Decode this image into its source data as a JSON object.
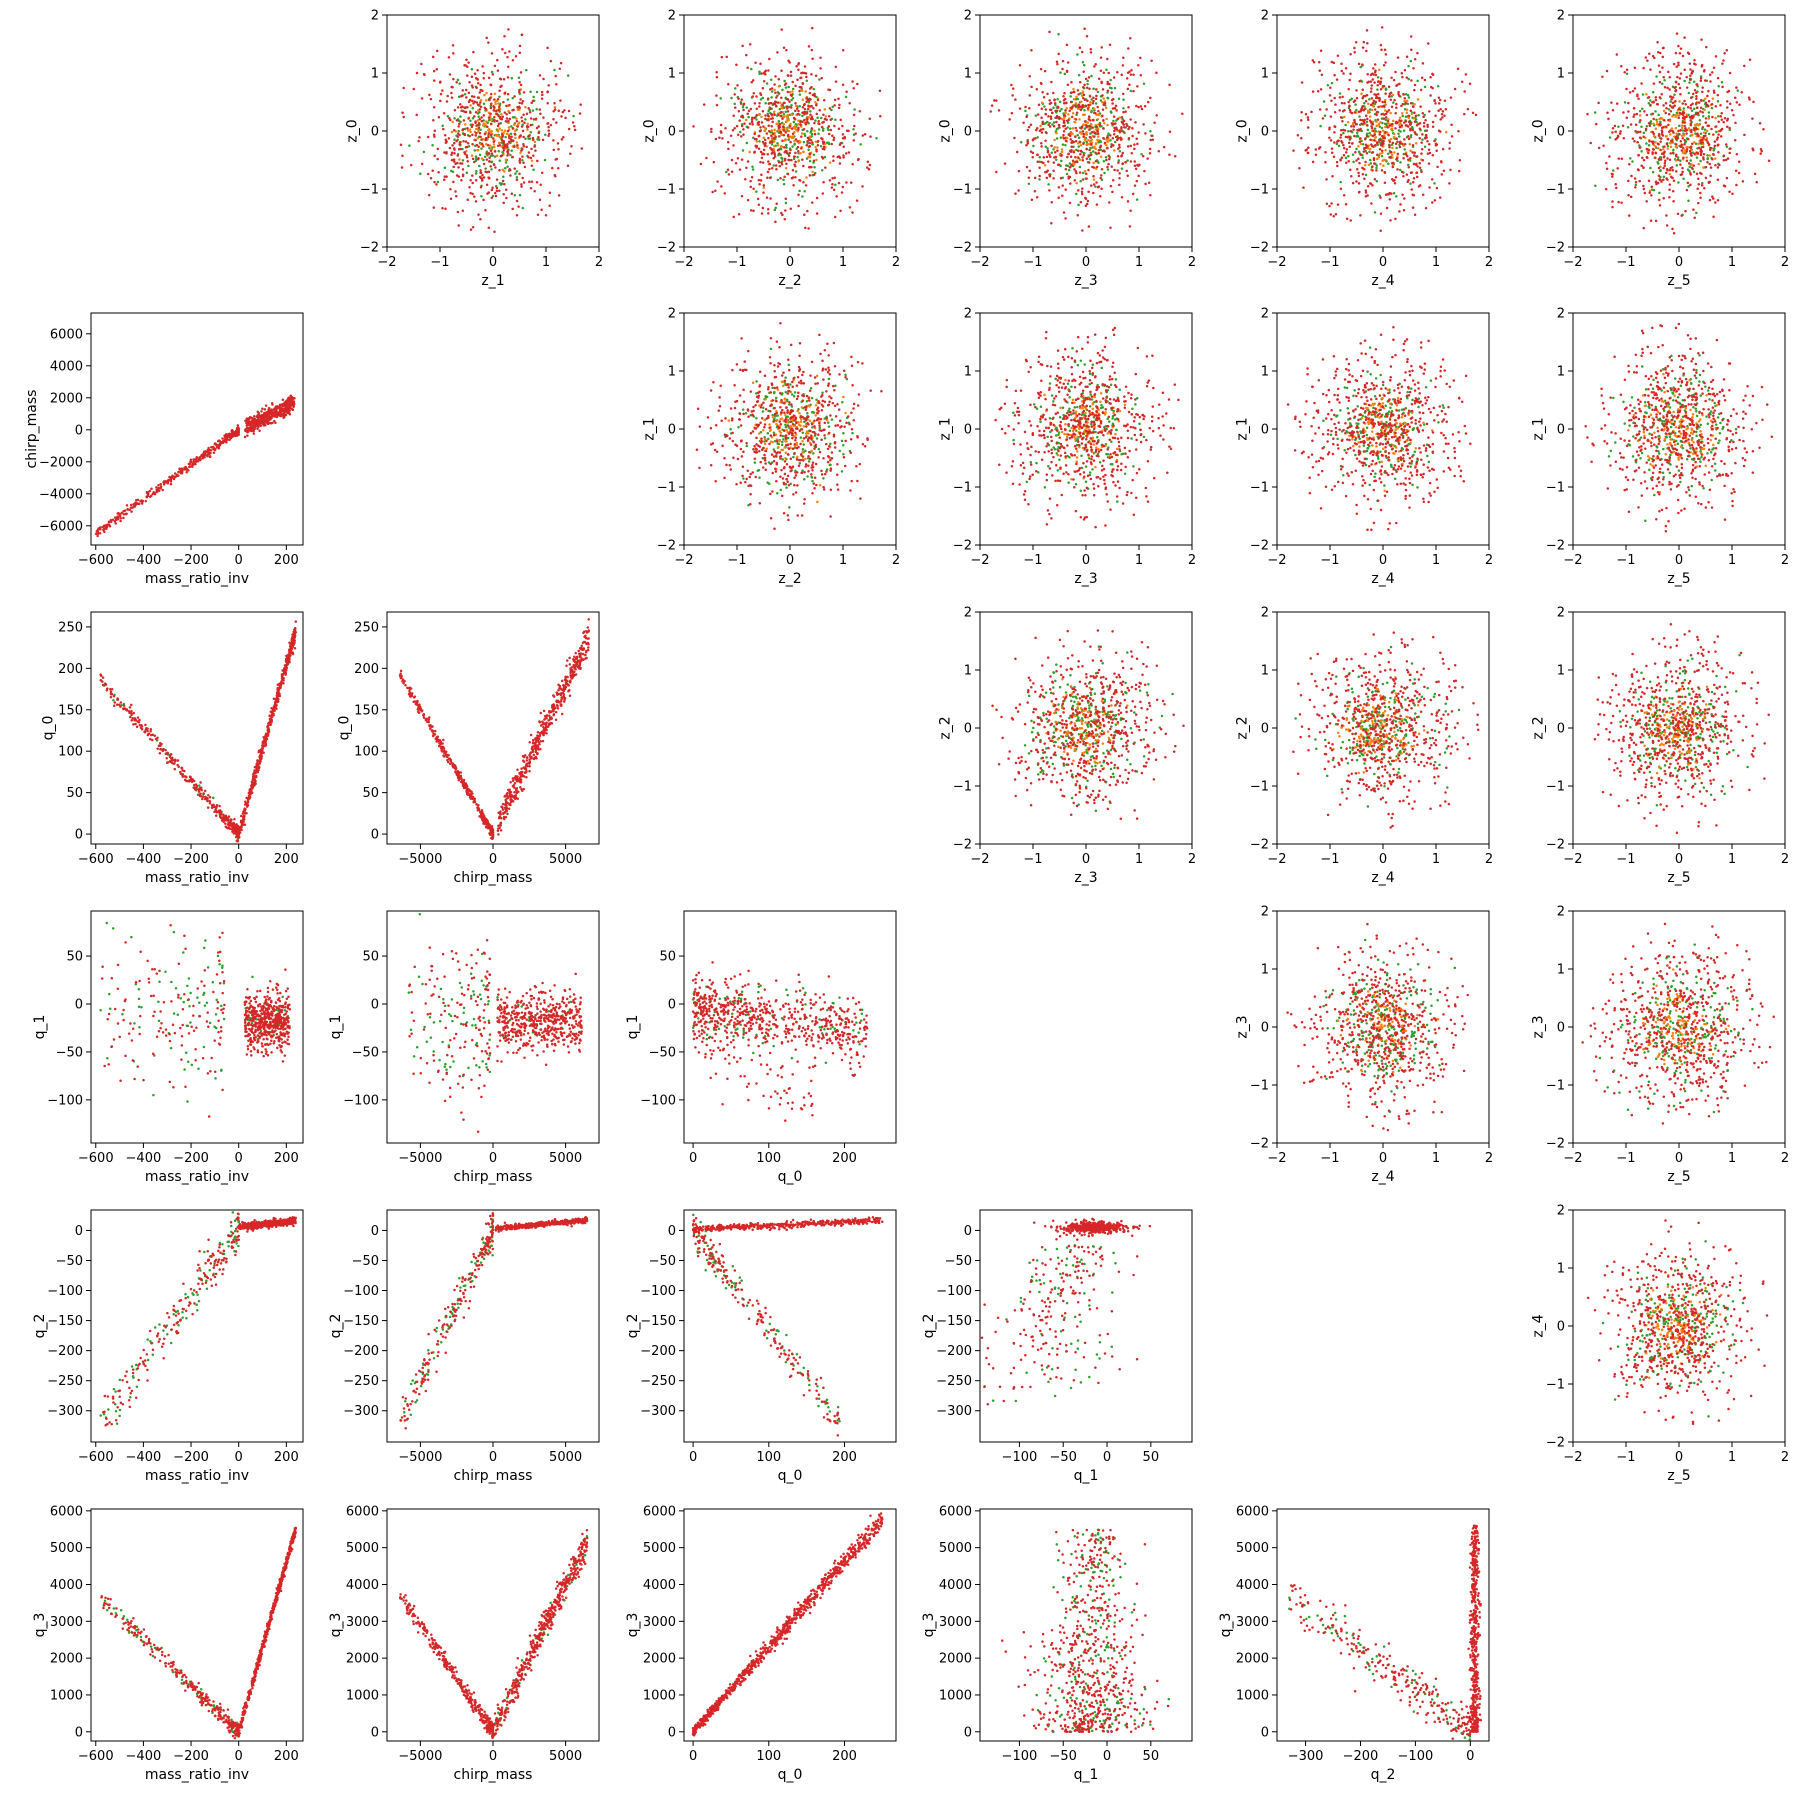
{
  "figure": {
    "background": "#ffffff",
    "point_colors": {
      "red": "#d62728",
      "green": "#2ca02c",
      "orange": "#ff7f0e"
    }
  },
  "chart_data": [
    {
      "type": "scatter",
      "panel": "0-1",
      "xlabel": "z_1",
      "ylabel": "z_0",
      "xticks": [
        -2,
        -1,
        0,
        1,
        2
      ],
      "yticks": [
        -2,
        -1,
        0,
        1,
        2
      ],
      "xlim": [
        -2,
        2
      ],
      "ylim": [
        -2,
        2
      ],
      "shape": "gaussian"
    },
    {
      "type": "scatter",
      "panel": "0-2",
      "xlabel": "z_2",
      "ylabel": "z_0",
      "xticks": [
        -2,
        -1,
        0,
        1,
        2
      ],
      "yticks": [
        -2,
        -1,
        0,
        1,
        2
      ],
      "xlim": [
        -2,
        2
      ],
      "ylim": [
        -2,
        2
      ],
      "shape": "gaussian"
    },
    {
      "type": "scatter",
      "panel": "0-3",
      "xlabel": "z_3",
      "ylabel": "z_0",
      "xticks": [
        -2,
        -1,
        0,
        1,
        2
      ],
      "yticks": [
        -2,
        -1,
        0,
        1,
        2
      ],
      "xlim": [
        -2,
        2
      ],
      "ylim": [
        -2,
        2
      ],
      "shape": "gaussian"
    },
    {
      "type": "scatter",
      "panel": "0-4",
      "xlabel": "z_4",
      "ylabel": "z_0",
      "xticks": [
        -2,
        -1,
        0,
        1,
        2
      ],
      "yticks": [
        -2,
        -1,
        0,
        1,
        2
      ],
      "xlim": [
        -2,
        2
      ],
      "ylim": [
        -2,
        2
      ],
      "shape": "gaussian"
    },
    {
      "type": "scatter",
      "panel": "0-5",
      "xlabel": "z_5",
      "ylabel": "z_0",
      "xticks": [
        -2,
        -1,
        0,
        1,
        2
      ],
      "yticks": [
        -2,
        -1,
        0,
        1,
        2
      ],
      "xlim": [
        -2,
        2
      ],
      "ylim": [
        -2,
        2
      ],
      "shape": "gaussian"
    },
    {
      "type": "scatter",
      "panel": "1-0",
      "xlabel": "mass_ratio_inv",
      "ylabel": "chirp_mass",
      "xticks": [
        -600,
        -400,
        -200,
        0,
        200
      ],
      "yticks": [
        -6000,
        -4000,
        -2000,
        0,
        2000,
        4000,
        6000
      ],
      "xlim": [
        -620,
        270
      ],
      "ylim": [
        -7200,
        7300
      ],
      "shape": "mr_cm"
    },
    {
      "type": "scatter",
      "panel": "1-2",
      "xlabel": "z_2",
      "ylabel": "z_1",
      "xticks": [
        -2,
        -1,
        0,
        1,
        2
      ],
      "yticks": [
        -2,
        -1,
        0,
        1,
        2
      ],
      "xlim": [
        -2,
        2
      ],
      "ylim": [
        -2,
        2
      ],
      "shape": "gaussian"
    },
    {
      "type": "scatter",
      "panel": "1-3",
      "xlabel": "z_3",
      "ylabel": "z_1",
      "xticks": [
        -2,
        -1,
        0,
        1,
        2
      ],
      "yticks": [
        -2,
        -1,
        0,
        1,
        2
      ],
      "xlim": [
        -2,
        2
      ],
      "ylim": [
        -2,
        2
      ],
      "shape": "gaussian"
    },
    {
      "type": "scatter",
      "panel": "1-4",
      "xlabel": "z_4",
      "ylabel": "z_1",
      "xticks": [
        -2,
        -1,
        0,
        1,
        2
      ],
      "yticks": [
        -2,
        -1,
        0,
        1,
        2
      ],
      "xlim": [
        -2,
        2
      ],
      "ylim": [
        -2,
        2
      ],
      "shape": "gaussian"
    },
    {
      "type": "scatter",
      "panel": "1-5",
      "xlabel": "z_5",
      "ylabel": "z_1",
      "xticks": [
        -2,
        -1,
        0,
        1,
        2
      ],
      "yticks": [
        -2,
        -1,
        0,
        1,
        2
      ],
      "xlim": [
        -2,
        2
      ],
      "ylim": [
        -2,
        2
      ],
      "shape": "gaussian"
    },
    {
      "type": "scatter",
      "panel": "2-0",
      "xlabel": "mass_ratio_inv",
      "ylabel": "q_0",
      "xticks": [
        -600,
        -400,
        -200,
        0,
        200
      ],
      "yticks": [
        0,
        50,
        100,
        150,
        200,
        250
      ],
      "xlim": [
        -620,
        270
      ],
      "ylim": [
        -12,
        268
      ],
      "shape": "mr_q0"
    },
    {
      "type": "scatter",
      "panel": "2-1",
      "xlabel": "chirp_mass",
      "ylabel": "q_0",
      "xticks": [
        -5000,
        0,
        5000
      ],
      "yticks": [
        0,
        50,
        100,
        150,
        200,
        250
      ],
      "xlim": [
        -7300,
        7300
      ],
      "ylim": [
        -12,
        268
      ],
      "shape": "cm_q0"
    },
    {
      "type": "scatter",
      "panel": "2-3",
      "xlabel": "z_3",
      "ylabel": "z_2",
      "xticks": [
        -2,
        -1,
        0,
        1,
        2
      ],
      "yticks": [
        -2,
        -1,
        0,
        1,
        2
      ],
      "xlim": [
        -2,
        2
      ],
      "ylim": [
        -2,
        2
      ],
      "shape": "gaussian"
    },
    {
      "type": "scatter",
      "panel": "2-4",
      "xlabel": "z_4",
      "ylabel": "z_2",
      "xticks": [
        -2,
        -1,
        0,
        1,
        2
      ],
      "yticks": [
        -2,
        -1,
        0,
        1,
        2
      ],
      "xlim": [
        -2,
        2
      ],
      "ylim": [
        -2,
        2
      ],
      "shape": "gaussian"
    },
    {
      "type": "scatter",
      "panel": "2-5",
      "xlabel": "z_5",
      "ylabel": "z_2",
      "xticks": [
        -2,
        -1,
        0,
        1,
        2
      ],
      "yticks": [
        -2,
        -1,
        0,
        1,
        2
      ],
      "xlim": [
        -2,
        2
      ],
      "ylim": [
        -2,
        2
      ],
      "shape": "gaussian"
    },
    {
      "type": "scatter",
      "panel": "3-0",
      "xlabel": "mass_ratio_inv",
      "ylabel": "q_1",
      "xticks": [
        -600,
        -400,
        -200,
        0,
        200
      ],
      "yticks": [
        -100,
        -50,
        0,
        50
      ],
      "xlim": [
        -620,
        270
      ],
      "ylim": [
        -145,
        97
      ],
      "shape": "mr_q1"
    },
    {
      "type": "scatter",
      "panel": "3-1",
      "xlabel": "chirp_mass",
      "ylabel": "q_1",
      "xticks": [
        -5000,
        0,
        5000
      ],
      "yticks": [
        -100,
        -50,
        0,
        50
      ],
      "xlim": [
        -7300,
        7300
      ],
      "ylim": [
        -145,
        97
      ],
      "shape": "cm_q1"
    },
    {
      "type": "scatter",
      "panel": "3-2",
      "xlabel": "q_0",
      "ylabel": "q_1",
      "xticks": [
        0,
        100,
        200
      ],
      "yticks": [
        -100,
        -50,
        0,
        50
      ],
      "xlim": [
        -12,
        268
      ],
      "ylim": [
        -145,
        97
      ],
      "shape": "q0_q1"
    },
    {
      "type": "scatter",
      "panel": "3-4",
      "xlabel": "z_4",
      "ylabel": "z_3",
      "xticks": [
        -2,
        -1,
        0,
        1,
        2
      ],
      "yticks": [
        -2,
        -1,
        0,
        1,
        2
      ],
      "xlim": [
        -2,
        2
      ],
      "ylim": [
        -2,
        2
      ],
      "shape": "gaussian"
    },
    {
      "type": "scatter",
      "panel": "3-5",
      "xlabel": "z_5",
      "ylabel": "z_3",
      "xticks": [
        -2,
        -1,
        0,
        1,
        2
      ],
      "yticks": [
        -2,
        -1,
        0,
        1,
        2
      ],
      "xlim": [
        -2,
        2
      ],
      "ylim": [
        -2,
        2
      ],
      "shape": "gaussian"
    },
    {
      "type": "scatter",
      "panel": "4-0",
      "xlabel": "mass_ratio_inv",
      "ylabel": "q_2",
      "xticks": [
        -600,
        -400,
        -200,
        0,
        200
      ],
      "yticks": [
        -300,
        -250,
        -200,
        -150,
        -100,
        -50,
        0
      ],
      "xlim": [
        -620,
        270
      ],
      "ylim": [
        -352,
        34
      ],
      "shape": "mr_q2"
    },
    {
      "type": "scatter",
      "panel": "4-1",
      "xlabel": "chirp_mass",
      "ylabel": "q_2",
      "xticks": [
        -5000,
        0,
        5000
      ],
      "yticks": [
        -300,
        -250,
        -200,
        -150,
        -100,
        -50,
        0
      ],
      "xlim": [
        -7300,
        7300
      ],
      "ylim": [
        -352,
        34
      ],
      "shape": "cm_q2"
    },
    {
      "type": "scatter",
      "panel": "4-2",
      "xlabel": "q_0",
      "ylabel": "q_2",
      "xticks": [
        0,
        100,
        200
      ],
      "yticks": [
        -300,
        -250,
        -200,
        -150,
        -100,
        -50,
        0
      ],
      "xlim": [
        -12,
        268
      ],
      "ylim": [
        -352,
        34
      ],
      "shape": "q0_q2"
    },
    {
      "type": "scatter",
      "panel": "4-3",
      "xlabel": "q_1",
      "ylabel": "q_2",
      "xticks": [
        -100,
        -50,
        0,
        50
      ],
      "yticks": [
        -300,
        -250,
        -200,
        -150,
        -100,
        -50,
        0
      ],
      "xlim": [
        -145,
        97
      ],
      "ylim": [
        -352,
        34
      ],
      "shape": "q1_q2"
    },
    {
      "type": "scatter",
      "panel": "4-5",
      "xlabel": "z_5",
      "ylabel": "z_4",
      "xticks": [
        -2,
        -1,
        0,
        1,
        2
      ],
      "yticks": [
        -2,
        -1,
        0,
        1,
        2
      ],
      "xlim": [
        -2,
        2
      ],
      "ylim": [
        -2,
        2
      ],
      "shape": "gaussian"
    },
    {
      "type": "scatter",
      "panel": "5-0",
      "xlabel": "mass_ratio_inv",
      "ylabel": "q_3",
      "xticks": [
        -600,
        -400,
        -200,
        0,
        200
      ],
      "yticks": [
        0,
        1000,
        2000,
        3000,
        4000,
        5000,
        6000
      ],
      "xlim": [
        -620,
        270
      ],
      "ylim": [
        -250,
        6050
      ],
      "shape": "mr_q3"
    },
    {
      "type": "scatter",
      "panel": "5-1",
      "xlabel": "chirp_mass",
      "ylabel": "q_3",
      "xticks": [
        -5000,
        0,
        5000
      ],
      "yticks": [
        0,
        1000,
        2000,
        3000,
        4000,
        5000,
        6000
      ],
      "xlim": [
        -7300,
        7300
      ],
      "ylim": [
        -250,
        6050
      ],
      "shape": "cm_q3"
    },
    {
      "type": "scatter",
      "panel": "5-2",
      "xlabel": "q_0",
      "ylabel": "q_3",
      "xticks": [
        0,
        100,
        200
      ],
      "yticks": [
        0,
        1000,
        2000,
        3000,
        4000,
        5000,
        6000
      ],
      "xlim": [
        -12,
        268
      ],
      "ylim": [
        -250,
        6050
      ],
      "shape": "q0_q3"
    },
    {
      "type": "scatter",
      "panel": "5-3",
      "xlabel": "q_1",
      "ylabel": "q_3",
      "xticks": [
        -100,
        -50,
        0,
        50
      ],
      "yticks": [
        0,
        1000,
        2000,
        3000,
        4000,
        5000,
        6000
      ],
      "xlim": [
        -145,
        97
      ],
      "ylim": [
        -250,
        6050
      ],
      "shape": "q1_q3"
    },
    {
      "type": "scatter",
      "panel": "5-4",
      "xlabel": "q_2",
      "ylabel": "q_3",
      "xticks": [
        -300,
        -200,
        -100,
        0
      ],
      "yticks": [
        0,
        1000,
        2000,
        3000,
        4000,
        5000,
        6000
      ],
      "xlim": [
        -352,
        34
      ],
      "ylim": [
        -250,
        6050
      ],
      "shape": "q2_q3"
    }
  ]
}
